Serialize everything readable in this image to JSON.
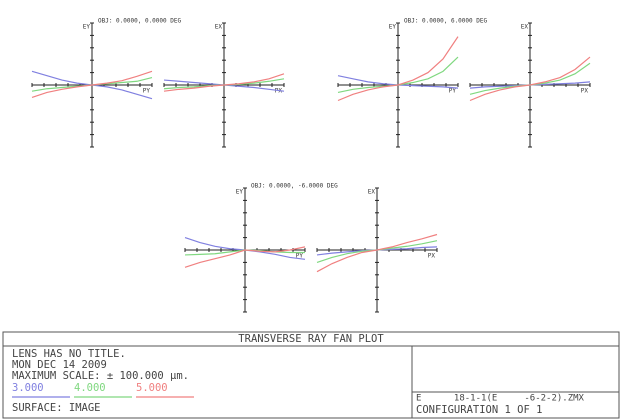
{
  "chart_data": [
    {
      "type": "line",
      "title": "OBJ: 0.0000, 0.0000 DEG",
      "ylabel": "EY",
      "xlabel": "PY",
      "x": [
        -1,
        -0.75,
        -0.5,
        -0.25,
        0,
        0.25,
        0.5,
        0.75,
        1
      ],
      "xlim": [
        -1,
        1
      ],
      "ylim": [
        -100,
        100
      ],
      "series": [
        {
          "name": "3.000",
          "color": "#8080e0",
          "values": [
            22,
            15,
            8,
            3,
            0,
            -3,
            -8,
            -15,
            -22
          ]
        },
        {
          "name": "4.000",
          "color": "#80d880",
          "values": [
            -10,
            -6,
            -4,
            -2,
            0,
            2,
            4,
            6,
            12
          ]
        },
        {
          "name": "5.000",
          "color": "#f08080",
          "values": [
            -20,
            -12,
            -7,
            -3,
            0,
            3,
            7,
            14,
            22
          ]
        }
      ]
    },
    {
      "type": "line",
      "ylabel": "EX",
      "xlabel": "PX",
      "x": [
        -1,
        -0.75,
        -0.5,
        -0.25,
        0,
        0.25,
        0.5,
        0.75,
        1
      ],
      "xlim": [
        -1,
        1
      ],
      "ylim": [
        -100,
        100
      ],
      "series": [
        {
          "name": "3.000",
          "color": "#8080e0",
          "values": [
            8,
            6,
            4,
            2,
            0,
            -2,
            -4,
            -7,
            -10
          ]
        },
        {
          "name": "4.000",
          "color": "#80d880",
          "values": [
            -6,
            -4,
            -3,
            -1,
            0,
            1,
            3,
            6,
            10
          ]
        },
        {
          "name": "5.000",
          "color": "#f08080",
          "values": [
            -10,
            -7,
            -5,
            -2,
            0,
            2,
            5,
            10,
            18
          ]
        }
      ]
    },
    {
      "type": "line",
      "title": "OBJ: 0.0000, 6.0000 DEG",
      "ylabel": "EY",
      "xlabel": "PY",
      "x": [
        -1,
        -0.75,
        -0.5,
        -0.25,
        0,
        0.25,
        0.5,
        0.75,
        1
      ],
      "xlim": [
        -1,
        1
      ],
      "ylim": [
        -100,
        100
      ],
      "series": [
        {
          "name": "3.000",
          "color": "#8080e0",
          "values": [
            15,
            10,
            5,
            2,
            0,
            -1,
            -2,
            -3,
            -5
          ]
        },
        {
          "name": "4.000",
          "color": "#80d880",
          "values": [
            -12,
            -7,
            -4,
            -2,
            0,
            4,
            10,
            22,
            45
          ]
        },
        {
          "name": "5.000",
          "color": "#f08080",
          "values": [
            -25,
            -15,
            -8,
            -3,
            0,
            8,
            20,
            42,
            78
          ]
        }
      ]
    },
    {
      "type": "line",
      "ylabel": "EX",
      "xlabel": "PX",
      "x": [
        -1,
        -0.75,
        -0.5,
        -0.25,
        0,
        0.25,
        0.5,
        0.75,
        1
      ],
      "xlim": [
        -1,
        1
      ],
      "ylim": [
        -100,
        100
      ],
      "series": [
        {
          "name": "3.000",
          "color": "#8080e0",
          "values": [
            -5,
            -3,
            -2,
            -1,
            0,
            1,
            2,
            3,
            5
          ]
        },
        {
          "name": "4.000",
          "color": "#80d880",
          "values": [
            -15,
            -9,
            -5,
            -2,
            0,
            3,
            8,
            18,
            35
          ]
        },
        {
          "name": "5.000",
          "color": "#f08080",
          "values": [
            -25,
            -15,
            -8,
            -3,
            0,
            5,
            12,
            25,
            45
          ]
        }
      ]
    },
    {
      "type": "line",
      "title": "OBJ: 0.0000, -6.0000 DEG",
      "ylabel": "EY",
      "xlabel": "PY",
      "x": [
        -1,
        -0.75,
        -0.5,
        -0.25,
        0,
        0.25,
        0.5,
        0.75,
        1
      ],
      "xlim": [
        -1,
        1
      ],
      "ylim": [
        -100,
        100
      ],
      "series": [
        {
          "name": "3.000",
          "color": "#8080e0",
          "values": [
            20,
            12,
            6,
            2,
            0,
            -3,
            -7,
            -12,
            -15
          ]
        },
        {
          "name": "4.000",
          "color": "#80d880",
          "values": [
            -8,
            -7,
            -6,
            -3,
            0,
            -1,
            -3,
            -4,
            -4
          ]
        },
        {
          "name": "5.000",
          "color": "#f08080",
          "values": [
            -28,
            -20,
            -14,
            -8,
            0,
            -2,
            -3,
            0,
            5
          ]
        }
      ]
    },
    {
      "type": "line",
      "ylabel": "EX",
      "xlabel": "PX",
      "x": [
        -1,
        -0.75,
        -0.5,
        -0.25,
        0,
        0.25,
        0.5,
        0.75,
        1
      ],
      "xlim": [
        -1,
        1
      ],
      "ylim": [
        -100,
        100
      ],
      "series": [
        {
          "name": "3.000",
          "color": "#8080e0",
          "values": [
            -8,
            -5,
            -3,
            -1,
            0,
            1,
            2,
            4,
            5
          ]
        },
        {
          "name": "4.000",
          "color": "#80d880",
          "values": [
            -20,
            -12,
            -6,
            -2,
            0,
            3,
            6,
            10,
            15
          ]
        },
        {
          "name": "5.000",
          "color": "#f08080",
          "values": [
            -35,
            -22,
            -12,
            -4,
            0,
            5,
            12,
            18,
            25
          ]
        }
      ]
    }
  ],
  "footer": {
    "title": "TRANSVERSE RAY FAN PLOT",
    "lines": [
      "LENS HAS NO TITLE.",
      "MON DEC 14 2009",
      "MAXIMUM SCALE: ± 100.000 µm."
    ],
    "surface": "SURFACE: IMAGE",
    "file": "E      18-1-1(E     -6-2-2).ZMX",
    "configuration": "CONFIGURATION 1 OF 1"
  }
}
